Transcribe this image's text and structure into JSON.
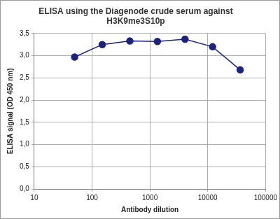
{
  "chart_data": {
    "type": "line",
    "title": [
      "ELISA using the Diagenode crude serum against",
      "H3K9me3S10p"
    ],
    "x_label": "Antibody dilution",
    "y_label": "ELISA signal (OD 450 nm)",
    "x": [
      50,
      150,
      450,
      1350,
      4050,
      12150,
      36450
    ],
    "values": [
      2.97,
      3.25,
      3.33,
      3.32,
      3.37,
      3.2,
      2.68
    ],
    "color": "#1a237e",
    "marker": "circle",
    "line_style": "solid",
    "log": "x",
    "grid": true,
    "xlim": [
      10,
      100000
    ],
    "xticks": [
      10,
      100,
      1000,
      10000,
      100000
    ],
    "ylim": [
      0,
      3.5
    ],
    "yticks": [
      {
        "value": 0,
        "label": "0,0"
      },
      {
        "value": 0.5,
        "label": "0,5"
      },
      {
        "value": 1,
        "label": "1,0"
      },
      {
        "value": 1.5,
        "label": "1,5"
      },
      {
        "value": 2,
        "label": "2,0"
      },
      {
        "value": 2.5,
        "label": "2,5"
      },
      {
        "value": 3,
        "label": "3,0"
      },
      {
        "value": 3.5,
        "label": "3,5"
      }
    ]
  }
}
